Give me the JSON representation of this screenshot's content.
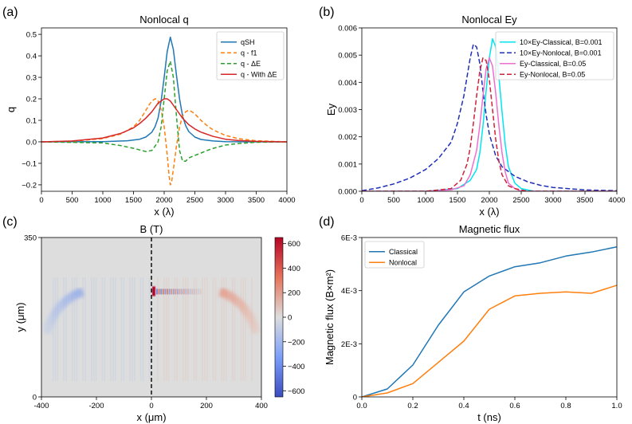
{
  "colors": {
    "blue": "#1f77b4",
    "orange": "#ff7f0e",
    "green": "#2ca02c",
    "red": "#d62728",
    "cyan": "#00e5f0",
    "navy": "#1f2fb8",
    "pink": "#ee6fd0",
    "crimson": "#d0203a",
    "map_neutral": "#dddddd",
    "map_blue": "#3a4cc0",
    "map_red": "#b40426"
  },
  "panels": {
    "a": {
      "label": "(a)"
    },
    "b": {
      "label": "(b)"
    },
    "c": {
      "label": "(c)"
    },
    "d": {
      "label": "(d)"
    }
  },
  "chart_data": [
    {
      "id": "a",
      "type": "line",
      "title": "Nonlocal q",
      "xlabel": "x (λ)",
      "ylabel": "q",
      "xlim": [
        0,
        4000
      ],
      "ylim": [
        -0.23,
        0.53
      ],
      "xticks": [
        0,
        500,
        1000,
        1500,
        2000,
        2500,
        3000,
        3500,
        4000
      ],
      "xtick_labels": [
        "0",
        "500",
        "1000",
        "1500",
        "2000",
        "2500",
        "3000",
        "3500",
        "4000"
      ],
      "yticks": [
        -0.2,
        -0.1,
        0.0,
        0.1,
        0.2,
        0.3,
        0.4,
        0.5
      ],
      "ytick_labels": [
        "−0.2",
        "−0.1",
        "0.0",
        "0.1",
        "0.2",
        "0.3",
        "0.4",
        "0.5"
      ],
      "legend_position": "top-right",
      "series": [
        {
          "name": "qSH",
          "color": "#1f77b4",
          "dash": "",
          "x": [
            0,
            1000,
            1400,
            1600,
            1700,
            1800,
            1850,
            1900,
            1950,
            2000,
            2050,
            2100,
            2150,
            2200,
            2250,
            2300,
            2350,
            2400,
            2500,
            2600,
            2800,
            3000,
            3500,
            4000
          ],
          "y": [
            0.0,
            0.001,
            0.005,
            0.012,
            0.022,
            0.045,
            0.07,
            0.11,
            0.19,
            0.3,
            0.42,
            0.487,
            0.43,
            0.31,
            0.2,
            0.12,
            0.075,
            0.048,
            0.022,
            0.011,
            0.004,
            0.001,
            0.0,
            0.0
          ]
        },
        {
          "name": "q - f1",
          "color": "#ff7f0e",
          "dash": "5,3",
          "x": [
            0,
            500,
            1000,
            1300,
            1500,
            1600,
            1700,
            1750,
            1800,
            1850,
            1880,
            1900,
            1950,
            2000,
            2050,
            2080,
            2100,
            2120,
            2150,
            2200,
            2250,
            2300,
            2350,
            2400,
            2450,
            2500,
            2600,
            2700,
            2800,
            3000,
            3200,
            3500,
            4000
          ],
          "y": [
            0.0,
            0.003,
            0.015,
            0.037,
            0.07,
            0.1,
            0.145,
            0.17,
            0.19,
            0.2,
            0.198,
            0.19,
            0.15,
            0.07,
            -0.06,
            -0.16,
            -0.2,
            -0.19,
            -0.13,
            -0.02,
            0.07,
            0.12,
            0.14,
            0.147,
            0.14,
            0.13,
            0.1,
            0.075,
            0.055,
            0.03,
            0.015,
            0.005,
            0.0
          ]
        },
        {
          "name": "q - ΔE",
          "color": "#2ca02c",
          "dash": "5,3",
          "x": [
            0,
            1000,
            1300,
            1500,
            1700,
            1800,
            1850,
            1900,
            1950,
            2000,
            2050,
            2100,
            2150,
            2200,
            2250,
            2300,
            2350,
            2400,
            2500,
            2600,
            2700,
            2800,
            3000,
            3200,
            3500,
            4000
          ],
          "y": [
            0.0,
            -0.005,
            -0.018,
            -0.03,
            -0.045,
            -0.04,
            -0.02,
            0.0,
            0.07,
            0.2,
            0.33,
            0.375,
            0.3,
            0.12,
            -0.04,
            -0.09,
            -0.09,
            -0.075,
            -0.063,
            -0.052,
            -0.04,
            -0.03,
            -0.015,
            -0.008,
            -0.002,
            0.0
          ]
        },
        {
          "name": "q - With ΔE",
          "color": "#d62728",
          "dash": "",
          "x": [
            0,
            500,
            1000,
            1300,
            1500,
            1600,
            1700,
            1800,
            1900,
            2000,
            2050,
            2100,
            2200,
            2300,
            2400,
            2500,
            2600,
            2800,
            3000,
            3200,
            3500,
            4000
          ],
          "y": [
            0.0,
            0.004,
            0.018,
            0.04,
            0.065,
            0.085,
            0.11,
            0.14,
            0.18,
            0.2,
            0.2,
            0.19,
            0.15,
            0.11,
            0.08,
            0.06,
            0.045,
            0.025,
            0.012,
            0.006,
            0.002,
            0.0
          ]
        }
      ]
    },
    {
      "id": "b",
      "type": "line",
      "title": "Nonlocal Ey",
      "xlabel": "x (λ)",
      "ylabel": "Ey",
      "xlim": [
        0,
        4000
      ],
      "ylim": [
        0,
        0.006
      ],
      "xticks": [
        0,
        500,
        1000,
        1500,
        2000,
        2500,
        3000,
        3500,
        4000
      ],
      "xtick_labels": [
        "0",
        "500",
        "1000",
        "1500",
        "2000",
        "2500",
        "3000",
        "3500",
        "4000"
      ],
      "yticks": [
        0.0,
        0.001,
        0.002,
        0.003,
        0.004,
        0.005,
        0.006
      ],
      "ytick_labels": [
        "0.000",
        "0.001",
        "0.002",
        "0.003",
        "0.004",
        "0.005",
        "0.006"
      ],
      "legend_position": "top-right",
      "series": [
        {
          "name": "10×Ey-Classical, B=0.001",
          "color": "#00e5f0",
          "dash": "",
          "x": [
            0,
            1000,
            1500,
            1700,
            1800,
            1850,
            1900,
            1950,
            2000,
            2050,
            2100,
            2150,
            2200,
            2250,
            2300,
            2400,
            2500,
            2700,
            3000,
            4000
          ],
          "y": [
            0,
            0,
            0.0001,
            0.0004,
            0.0008,
            0.0014,
            0.0024,
            0.0037,
            0.0049,
            0.0056,
            0.0053,
            0.0042,
            0.0029,
            0.0017,
            0.0009,
            0.0003,
            0.0001,
            0,
            0,
            0
          ]
        },
        {
          "name": "10×Ey-Nonlocal, B=0.001",
          "color": "#1f2fb8",
          "dash": "6,3",
          "x": [
            0,
            250,
            500,
            750,
            1000,
            1200,
            1400,
            1500,
            1600,
            1650,
            1700,
            1750,
            1800,
            1850,
            1900,
            1950,
            2000,
            2100,
            2200,
            2400,
            2600,
            2800,
            3000,
            3500,
            4000
          ],
          "y": [
            2e-05,
            0.00012,
            0.00027,
            0.00048,
            0.0008,
            0.0012,
            0.0018,
            0.0025,
            0.0035,
            0.0042,
            0.0049,
            0.0054,
            0.0053,
            0.0047,
            0.0037,
            0.0028,
            0.0021,
            0.0013,
            0.0009,
            0.00055,
            0.00035,
            0.00022,
            0.00014,
            5e-05,
            2e-05
          ]
        },
        {
          "name": "Ey-Classical, B=0.05",
          "color": "#ee6fd0",
          "dash": "",
          "x": [
            0,
            1000,
            1400,
            1600,
            1700,
            1800,
            1850,
            1900,
            1950,
            2000,
            2050,
            2100,
            2150,
            2200,
            2250,
            2300,
            2400,
            2500,
            2700,
            3000,
            4000
          ],
          "y": [
            0,
            0,
            5e-05,
            0.0002,
            0.0006,
            0.0015,
            0.0024,
            0.0035,
            0.0045,
            0.0049,
            0.0046,
            0.0036,
            0.0024,
            0.0014,
            0.0007,
            0.0003,
            0.0001,
            0,
            0,
            0,
            0
          ]
        },
        {
          "name": "Ey-Nonlocal, B=0.05",
          "color": "#d0203a",
          "dash": "6,3",
          "x": [
            0,
            1000,
            1400,
            1550,
            1650,
            1700,
            1750,
            1800,
            1850,
            1900,
            1950,
            2000,
            2050,
            2100,
            2150,
            2200,
            2300,
            2400,
            2600,
            3000,
            4000
          ],
          "y": [
            0,
            0,
            0.0001,
            0.0004,
            0.001,
            0.0016,
            0.0025,
            0.0035,
            0.0044,
            0.0049,
            0.0048,
            0.0041,
            0.003,
            0.0019,
            0.0011,
            0.0006,
            0.0002,
            0.0001,
            0,
            0,
            0
          ]
        }
      ]
    },
    {
      "id": "c",
      "type": "heatmap",
      "title": "B (T)",
      "xlabel": "x (μm)",
      "ylabel": "y (μm)",
      "xlim": [
        -400,
        400
      ],
      "ylim": [
        0,
        350
      ],
      "xticks": [
        -400,
        -200,
        0,
        200,
        400
      ],
      "xtick_labels": [
        "-400",
        "-200",
        "0",
        "200",
        "400"
      ],
      "yticks": [
        0,
        350
      ],
      "ytick_labels": [
        "0",
        "350"
      ],
      "clim": [
        -650,
        650
      ],
      "cbar_ticks": [
        600,
        400,
        200,
        0,
        -200,
        -400,
        -600
      ],
      "cbar_tick_labels": [
        "600",
        "400",
        "200",
        "0",
        "−200",
        "−400",
        "−600"
      ],
      "marker_line_x": 0,
      "features": [
        {
          "name": "left-arc",
          "sign": "negative",
          "from": [
            -250,
            205
          ],
          "to": [
            -400,
            100
          ]
        },
        {
          "name": "right-arc",
          "sign": "positive",
          "from": [
            250,
            205
          ],
          "to": [
            400,
            100
          ]
        },
        {
          "name": "center-band",
          "sign": "mixed",
          "x_range": [
            0,
            250
          ],
          "y": 232
        }
      ]
    },
    {
      "id": "d",
      "type": "line",
      "title": "Magnetic flux",
      "xlabel": "t (ns)",
      "ylabel": "Magnetic flux (B×m²)",
      "xlim": [
        0,
        1.0
      ],
      "ylim": [
        0,
        0.006
      ],
      "xticks": [
        0,
        0.2,
        0.4,
        0.6,
        0.8,
        1.0
      ],
      "xtick_labels": [
        "0.0",
        "0.2",
        "0.4",
        "0.6",
        "0.8",
        "1.0"
      ],
      "yticks": [
        0,
        0.002,
        0.004,
        0.006
      ],
      "ytick_labels": [
        "0",
        "2E-3",
        "4E-3",
        "6E-3"
      ],
      "legend_position": "top-left",
      "series": [
        {
          "name": "Classical",
          "color": "#1f77b4",
          "dash": "",
          "x": [
            0,
            0.1,
            0.2,
            0.3,
            0.4,
            0.5,
            0.6,
            0.7,
            0.8,
            0.9,
            1.0
          ],
          "y": [
            0,
            0.0003,
            0.0012,
            0.0027,
            0.00395,
            0.00455,
            0.0049,
            0.00505,
            0.0053,
            0.00545,
            0.00565
          ]
        },
        {
          "name": "Nonlocal",
          "color": "#ff7f0e",
          "dash": "",
          "x": [
            0,
            0.1,
            0.2,
            0.3,
            0.4,
            0.5,
            0.6,
            0.7,
            0.8,
            0.9,
            1.0
          ],
          "y": [
            0,
            0.00015,
            0.0005,
            0.0013,
            0.0021,
            0.0033,
            0.0038,
            0.0039,
            0.00395,
            0.0039,
            0.0042
          ]
        }
      ]
    }
  ]
}
